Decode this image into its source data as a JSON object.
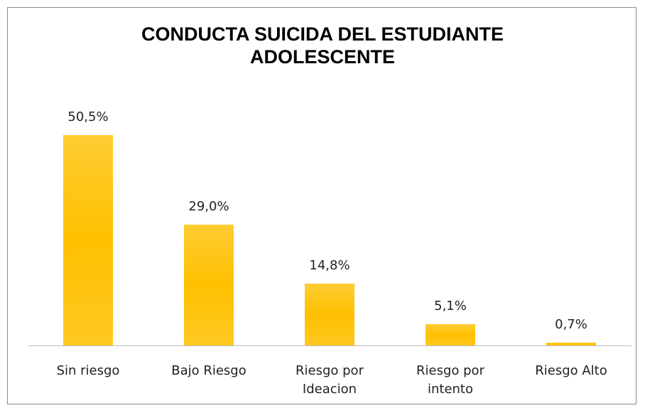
{
  "chart_data": {
    "type": "bar",
    "title": "CONDUCTA SUICIDA DEL ESTUDIANTE ADOLESCENTE",
    "categories": [
      "Sin riesgo",
      "Bajo Riesgo",
      "Riesgo por Ideacion",
      "Riesgo por intento",
      "Riesgo Alto"
    ],
    "values": [
      50.5,
      29.0,
      14.8,
      5.1,
      0.7
    ],
    "value_labels": [
      "50,5%",
      "29,0%",
      "14,8%",
      "5,1%",
      "0,7%"
    ],
    "color": "#ffc000"
  }
}
